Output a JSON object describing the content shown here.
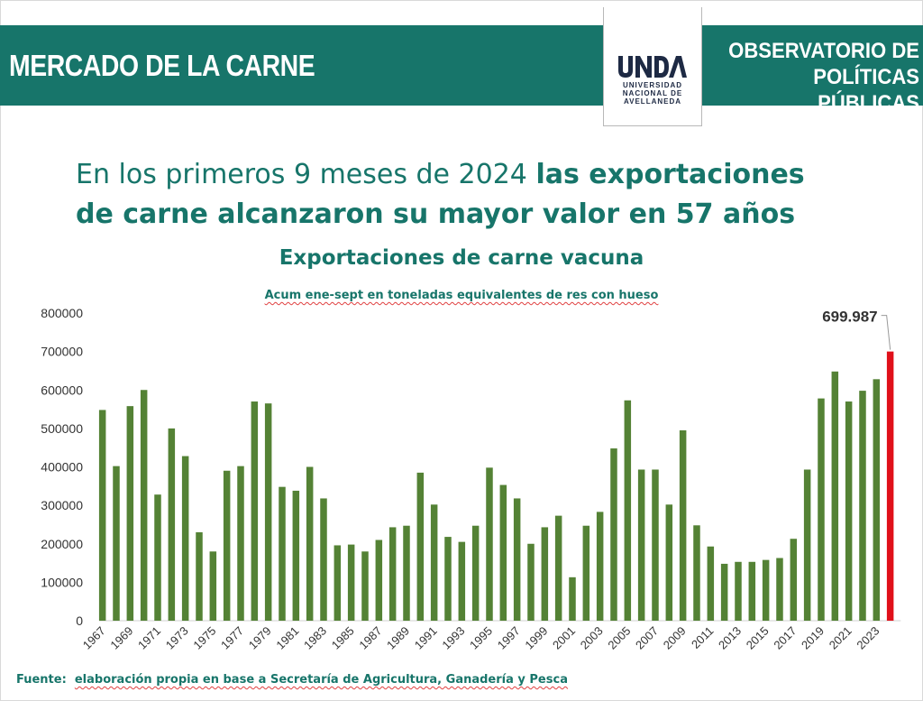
{
  "header": {
    "title": "MERCADO DE LA CARNE",
    "observatorio_line1": "OBSERVATORIO DE",
    "observatorio_line2": "POLÍTICAS PÚBLICAS",
    "logo_mark": "UNDAV",
    "logo_line1": "UNIVERSIDAD",
    "logo_line2": "NACIONAL DE",
    "logo_line3": "AVELLANEDA"
  },
  "headline": {
    "line1_regular": "En los primeros 9 meses de 2024 ",
    "line1_bold": "las exportaciones",
    "line2_bold": "de carne alcanzaron su mayor valor en 57 años"
  },
  "source": {
    "label": "Fuente:",
    "text": "elaboración propia en base a Secretaría de Agricultura, Ganadería y Pesca"
  },
  "colors": {
    "teal": "#17756a",
    "bar": "#548235",
    "highlight": "#e0101a"
  },
  "chart_data": {
    "type": "bar",
    "title": "Exportaciones de carne vacuna",
    "subtitle": "Acum ene-sept en toneladas equivalentes de res con hueso",
    "xlabel": "",
    "ylabel": "",
    "ylim": [
      0,
      800000
    ],
    "yticks": [
      "0",
      "100000",
      "200000",
      "300000",
      "400000",
      "500000",
      "600000",
      "700000",
      "800000"
    ],
    "grid": false,
    "categories": [
      1967,
      1968,
      1969,
      1970,
      1971,
      1972,
      1973,
      1974,
      1975,
      1976,
      1977,
      1978,
      1979,
      1980,
      1981,
      1982,
      1983,
      1984,
      1985,
      1986,
      1987,
      1988,
      1989,
      1990,
      1991,
      1992,
      1993,
      1994,
      1995,
      1996,
      1997,
      1998,
      1999,
      2000,
      2001,
      2002,
      2003,
      2004,
      2005,
      2006,
      2007,
      2008,
      2009,
      2010,
      2011,
      2012,
      2013,
      2014,
      2015,
      2016,
      2017,
      2018,
      2019,
      2020,
      2021,
      2022,
      2023,
      2024
    ],
    "x_tick_labels": [
      "1967",
      "1969",
      "1971",
      "1973",
      "1975",
      "1977",
      "1979",
      "1981",
      "1983",
      "1985",
      "1987",
      "1989",
      "1991",
      "1993",
      "1995",
      "1997",
      "1999",
      "2001",
      "2003",
      "2005",
      "2007",
      "2009",
      "2011",
      "2013",
      "2015",
      "2017",
      "2019",
      "2021",
      "2023"
    ],
    "values": [
      548000,
      402000,
      558000,
      600000,
      328000,
      500000,
      428000,
      230000,
      180000,
      390000,
      402000,
      570000,
      565000,
      348000,
      338000,
      400000,
      318000,
      196000,
      198000,
      180000,
      210000,
      243000,
      247000,
      385000,
      302000,
      218000,
      205000,
      247000,
      398000,
      353000,
      318000,
      200000,
      243000,
      273000,
      113000,
      247000,
      283000,
      448000,
      573000,
      393000,
      393000,
      302000,
      495000,
      248000,
      193000,
      148000,
      153000,
      153000,
      158000,
      163000,
      213000,
      393000,
      578000,
      648000,
      570000,
      598000,
      628000,
      699987
    ],
    "highlight_index": 57,
    "annotation": "699.987"
  }
}
